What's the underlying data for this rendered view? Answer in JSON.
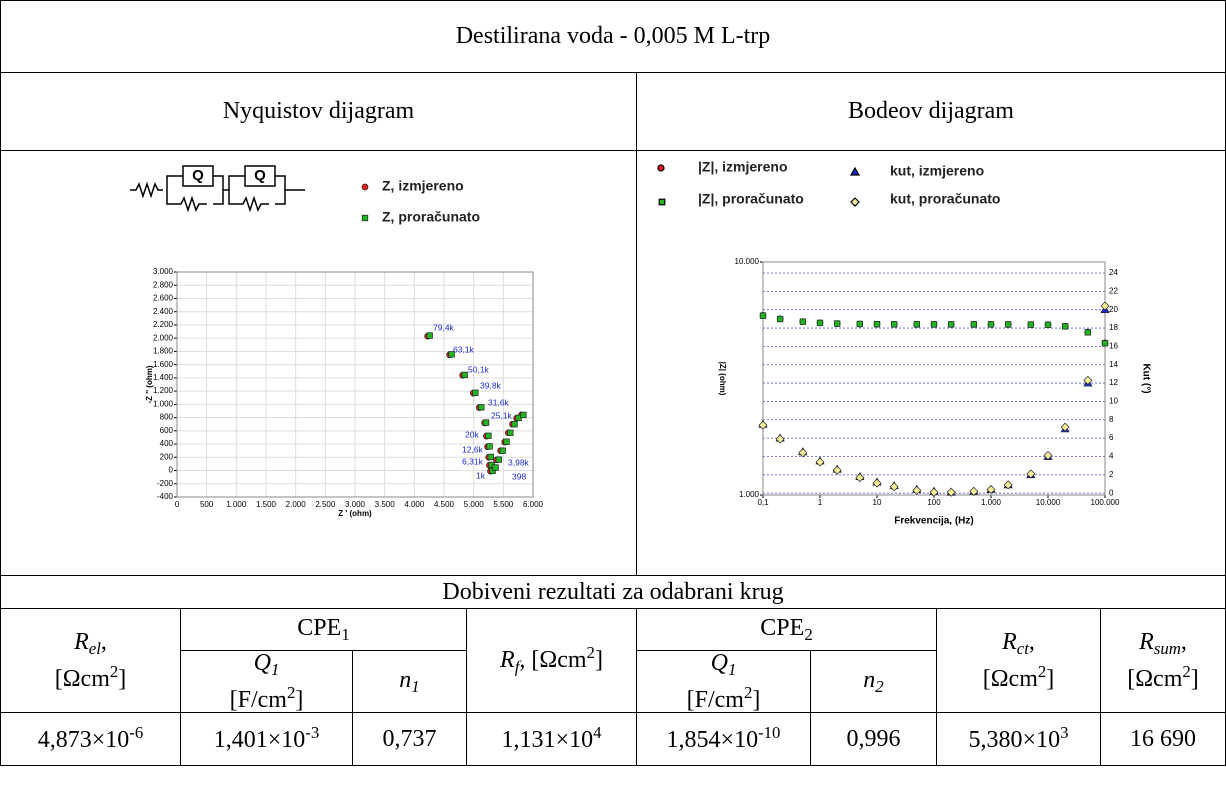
{
  "table": {
    "title": "Destilirana voda - 0,005 M L-trp",
    "left_header": "Nyquistov dijagram",
    "right_header": "Bodeov dijagram",
    "results": {
      "title": "Dobiveni rezultati za odabrani krug",
      "group_headers": [
        [
          {
            "text": "CPE"
          },
          {
            "text": "1",
            "fmt": "sub"
          }
        ],
        [
          {
            "text": "CPE"
          },
          {
            "text": "2",
            "fmt": "sub"
          }
        ]
      ],
      "headers": [
        [
          [
            {
              "text": "R",
              "fmt": "i"
            },
            {
              "text": "el",
              "fmt": "isub"
            },
            {
              "text": ","
            }
          ],
          [
            {
              "text": "[Ωcm"
            },
            {
              "text": "2",
              "fmt": "sup"
            },
            {
              "text": "]"
            }
          ]
        ],
        [
          [
            {
              "text": "Q",
              "fmt": "i"
            },
            {
              "text": "1",
              "fmt": "isub"
            }
          ],
          [
            {
              "text": "[F/cm"
            },
            {
              "text": "2",
              "fmt": "sup"
            },
            {
              "text": "]"
            }
          ]
        ],
        [
          [
            {
              "text": "n",
              "fmt": "i"
            },
            {
              "text": "1",
              "fmt": "isub"
            }
          ]
        ],
        [
          [
            {
              "text": "R",
              "fmt": "i"
            },
            {
              "text": "f",
              "fmt": "isub"
            },
            {
              "text": ", [Ωcm"
            },
            {
              "text": "2",
              "fmt": "sup"
            },
            {
              "text": "]"
            }
          ]
        ],
        [
          [
            {
              "text": "Q",
              "fmt": "i"
            },
            {
              "text": "1",
              "fmt": "isub"
            }
          ],
          [
            {
              "text": "[F/cm"
            },
            {
              "text": "2",
              "fmt": "sup"
            },
            {
              "text": "]"
            }
          ]
        ],
        [
          [
            {
              "text": "n",
              "fmt": "i"
            },
            {
              "text": "2",
              "fmt": "isub"
            }
          ]
        ],
        [
          [
            {
              "text": "R",
              "fmt": "i"
            },
            {
              "text": "ct",
              "fmt": "isub"
            },
            {
              "text": ","
            }
          ],
          [
            {
              "text": "[Ωcm"
            },
            {
              "text": "2",
              "fmt": "sup"
            },
            {
              "text": "]"
            }
          ]
        ],
        [
          [
            {
              "text": "R",
              "fmt": "i"
            },
            {
              "text": "sum",
              "fmt": "isub"
            },
            {
              "text": ","
            }
          ],
          [
            {
              "text": "[Ωcm"
            },
            {
              "text": "2",
              "fmt": "sup"
            },
            {
              "text": "]"
            }
          ]
        ]
      ],
      "values": [
        [
          {
            "text": "4,873×10"
          },
          {
            "text": "-6",
            "fmt": "sup"
          }
        ],
        [
          {
            "text": "1,401×10"
          },
          {
            "text": "-3",
            "fmt": "sup"
          }
        ],
        [
          {
            "text": "0,737"
          }
        ],
        [
          {
            "text": "1,131×10"
          },
          {
            "text": "4",
            "fmt": "sup"
          }
        ],
        [
          {
            "text": "1,854×10"
          },
          {
            "text": "-10",
            "fmt": "sup"
          }
        ],
        [
          {
            "text": "0,996"
          }
        ],
        [
          {
            "text": "5,380×10"
          },
          {
            "text": "3",
            "fmt": "sup"
          }
        ],
        [
          {
            "text": "16 690"
          }
        ]
      ]
    }
  },
  "nyquist": {
    "type": "scatter",
    "circuit_labels": [
      "Q",
      "Q"
    ],
    "x_label": "Z ' (ohm)",
    "y_label": "-Z '' (ohm)",
    "xlim": [
      0,
      6000
    ],
    "ylim": [
      -400,
      3000
    ],
    "grid": true,
    "xticks": [
      0,
      500,
      {
        "value": 1000,
        "label": "1.000"
      },
      {
        "value": 1500,
        "label": "1.500"
      },
      {
        "value": 2000,
        "label": "2.000"
      },
      {
        "value": 2500,
        "label": "2.500"
      },
      {
        "value": 3000,
        "label": "3.000"
      },
      {
        "value": 3500,
        "label": "3.500"
      },
      {
        "value": 4000,
        "label": "4.000"
      },
      {
        "value": 4500,
        "label": "4.500"
      },
      {
        "value": 5000,
        "label": "5.000"
      },
      {
        "value": 5500,
        "label": "5.500"
      },
      {
        "value": 6000,
        "label": "6.000"
      }
    ],
    "yticks": [
      -400,
      -200,
      0,
      200,
      400,
      600,
      800,
      {
        "value": 1000,
        "label": "1.000"
      },
      {
        "value": 1200,
        "label": "1.200"
      },
      {
        "value": 1400,
        "label": "1.400"
      },
      {
        "value": 1600,
        "label": "1.600"
      },
      {
        "value": 1800,
        "label": "1.800"
      },
      {
        "value": 2000,
        "label": "2.000"
      },
      {
        "value": 2200,
        "label": "2.200"
      },
      {
        "value": 2400,
        "label": "2.400"
      },
      {
        "value": 2600,
        "label": "2.600"
      },
      {
        "value": 2800,
        "label": "2.800"
      },
      {
        "value": 3000,
        "label": "3.000"
      }
    ],
    "annotations": [
      "79,4k",
      "63,1k",
      "50,1k",
      "39,8k",
      "31,6k",
      "25,1k",
      "20k",
      "12,6k",
      "6,31k",
      "3,98k",
      "1k",
      "398"
    ],
    "series": [
      {
        "name": "Z, izmjereno",
        "color": "#e02020",
        "marker": "circle",
        "x": [
          4250,
          4620,
          4840,
          5020,
          5120,
          5210,
          5240,
          5260,
          5280,
          5290,
          5310,
          5360,
          5410,
          5480,
          5550,
          5610,
          5680,
          5750,
          5830
        ],
        "values": [
          2030,
          1750,
          1440,
          1170,
          950,
          720,
          520,
          360,
          200,
          80,
          -10,
          40,
          160,
          300,
          430,
          570,
          700,
          790,
          840
        ]
      },
      {
        "name": "Z, proračunato",
        "color": "#22b422",
        "marker": "square",
        "x": [
          4250,
          4620,
          4840,
          5020,
          5120,
          5200,
          5240,
          5260,
          5280,
          5295,
          5310,
          5360,
          5415,
          5480,
          5545,
          5610,
          5680,
          5750,
          5830
        ],
        "values": [
          2040,
          1755,
          1445,
          1175,
          955,
          725,
          525,
          365,
          205,
          85,
          -5,
          45,
          165,
          300,
          435,
          570,
          700,
          795,
          840
        ]
      }
    ]
  },
  "bode": {
    "type": "scatter",
    "x_label": "Frekvencija, (Hz)",
    "y_label": "|Z| (ohm)",
    "y2_label": "Kut (°)",
    "log_x": true,
    "log_y": true,
    "xlim": [
      0.1,
      100000
    ],
    "ylim": [
      1000,
      10000
    ],
    "y2lim": [
      -0.2,
      25.2
    ],
    "xticks": [
      {
        "value": 0.1,
        "label": "0,1"
      },
      1,
      10,
      100,
      {
        "value": 1000,
        "label": "1.000"
      },
      {
        "value": 10000,
        "label": "10.000"
      },
      {
        "value": 100000,
        "label": "100.000"
      }
    ],
    "yticks": [
      {
        "value": 1000,
        "label": "1.000"
      },
      {
        "value": 10000,
        "label": "10.000"
      }
    ],
    "y2ticks": [
      0,
      2,
      4,
      6,
      8,
      10,
      12,
      14,
      16,
      18,
      20,
      22,
      24
    ],
    "x": [
      0.1,
      0.2,
      0.5,
      1,
      2,
      5,
      10,
      20,
      50,
      100,
      200,
      500,
      1000,
      2000,
      5000,
      10000,
      20000,
      50000,
      100000
    ],
    "series": [
      {
        "name": "|Z|, izmjereno",
        "color": "#e02020",
        "marker": "circle",
        "values": [
          5900,
          5700,
          5550,
          5480,
          5440,
          5420,
          5410,
          5405,
          5400,
          5400,
          5400,
          5400,
          5400,
          5395,
          5390,
          5380,
          5300,
          5000,
          4500
        ]
      },
      {
        "name": "|Z|, proračunato",
        "color": "#22b422",
        "marker": "square",
        "values": [
          5880,
          5690,
          5545,
          5478,
          5440,
          5420,
          5410,
          5405,
          5400,
          5400,
          5400,
          5400,
          5400,
          5395,
          5390,
          5378,
          5295,
          4990,
          4480
        ]
      },
      {
        "name": "kut, izmjereno",
        "color": "#1a2ad0",
        "marker": "triangle",
        "axis": "y2",
        "values": [
          7.5,
          6,
          4.5,
          3.5,
          2.6,
          1.8,
          1.2,
          0.8,
          0.4,
          0.2,
          0.1,
          0.2,
          0.4,
          0.9,
          2,
          4,
          7,
          12,
          20
        ]
      },
      {
        "name": "kut, proračunato",
        "color": "#f4ee9a",
        "marker": "diamond",
        "axis": "y2",
        "values": [
          7.4,
          5.9,
          4.4,
          3.4,
          2.5,
          1.7,
          1.1,
          0.7,
          0.3,
          0.1,
          0.1,
          0.2,
          0.4,
          0.9,
          2.1,
          4.1,
          7.2,
          12.3,
          20.4
        ]
      }
    ]
  }
}
